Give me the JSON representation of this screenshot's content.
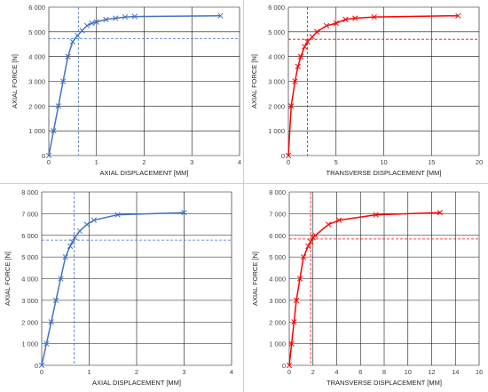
{
  "chart_data": [
    {
      "type": "line",
      "color": "#4472c4",
      "xlabel": "AXIAL DISPLACEMENT [MM]",
      "ylabel": "AXIAL FORCE [N]",
      "xlim": [
        0,
        4
      ],
      "ylim": [
        0,
        6000
      ],
      "xticks": [
        "0",
        "1",
        "2",
        "3",
        "4"
      ],
      "yticks": [
        "0",
        "1 000",
        "2 000",
        "3 000",
        "4 000",
        "5 000",
        "6 000"
      ],
      "grid": true,
      "series": [
        {
          "x": [
            0,
            0.1,
            0.2,
            0.3,
            0.4,
            0.5,
            0.6,
            0.7,
            0.8,
            0.9,
            1.0,
            1.2,
            1.4,
            1.6,
            1.8,
            3.6
          ],
          "y": [
            0,
            1000,
            2000,
            3000,
            4000,
            4600,
            4850,
            5050,
            5250,
            5350,
            5400,
            5500,
            5550,
            5600,
            5620,
            5650
          ]
        }
      ],
      "reference": {
        "x": 0.62,
        "y": 4730
      }
    },
    {
      "type": "line",
      "color": "#ff0000",
      "xlabel": "TRANSVERSE DISPLACEMENT [MM]",
      "ylabel": "AXIAL FORCE [N]",
      "xlim": [
        0,
        20
      ],
      "ylim": [
        0,
        6000
      ],
      "xticks": [
        "0",
        "5",
        "10",
        "15",
        "20"
      ],
      "yticks": [
        "0",
        "1 000",
        "2 000",
        "3 000",
        "4 000",
        "5 000",
        "6 000"
      ],
      "grid": true,
      "series": [
        {
          "x": [
            0,
            0.3,
            0.7,
            1.0,
            1.3,
            1.7,
            2.0,
            2.5,
            3.0,
            4.0,
            5.0,
            6.0,
            7.0,
            9.0,
            17.8
          ],
          "y": [
            0,
            2000,
            3000,
            3600,
            4000,
            4400,
            4600,
            4800,
            5000,
            5250,
            5350,
            5500,
            5550,
            5600,
            5650
          ]
        }
      ],
      "reference": {
        "x": 2.0,
        "y": 4700
      }
    },
    {
      "type": "line",
      "color": "#4472c4",
      "xlabel": "AXIAL DISPLACEMENT [MM]",
      "ylabel": "AXIAL FORCE [N]",
      "xlim": [
        0,
        4
      ],
      "ylim": [
        0,
        8000
      ],
      "xticks": [
        "0",
        "1",
        "2",
        "3",
        "4"
      ],
      "yticks": [
        "0",
        "1 000",
        "2 000",
        "3 000",
        "4 000",
        "5 000",
        "6 000",
        "7 000",
        "8 000"
      ],
      "grid": true,
      "series": [
        {
          "x": [
            0,
            0.1,
            0.2,
            0.3,
            0.4,
            0.5,
            0.6,
            0.65,
            0.7,
            0.8,
            0.95,
            1.1,
            1.6,
            3.0
          ],
          "y": [
            0,
            1000,
            2000,
            3000,
            4000,
            5000,
            5500,
            5700,
            5900,
            6200,
            6500,
            6700,
            6950,
            7050
          ]
        }
      ],
      "reference": {
        "x": 0.68,
        "y": 5780
      }
    },
    {
      "type": "line",
      "color": "#ff0000",
      "xlabel": "TRANSVERSE DISPLACEMENT [MM]",
      "ylabel": "AXIAL FORCE [N]",
      "xlim": [
        0,
        16
      ],
      "ylim": [
        0,
        8000
      ],
      "xticks": [
        "0",
        "2",
        "4",
        "6",
        "8",
        "10",
        "12",
        "14",
        "16"
      ],
      "yticks": [
        "0",
        "1 000",
        "2 000",
        "3 000",
        "4 000",
        "5 000",
        "6 000",
        "7 000",
        "8 000"
      ],
      "grid": true,
      "series": [
        {
          "x": [
            0,
            0.2,
            0.4,
            0.6,
            0.9,
            1.2,
            1.6,
            1.8,
            2.0,
            2.2,
            3.3,
            4.2,
            7.3,
            12.7
          ],
          "y": [
            0,
            1000,
            2000,
            3000,
            4000,
            5000,
            5500,
            5700,
            5900,
            6000,
            6500,
            6700,
            6950,
            7050
          ]
        }
      ],
      "reference": {
        "x": 1.8,
        "y": 5830
      }
    }
  ]
}
